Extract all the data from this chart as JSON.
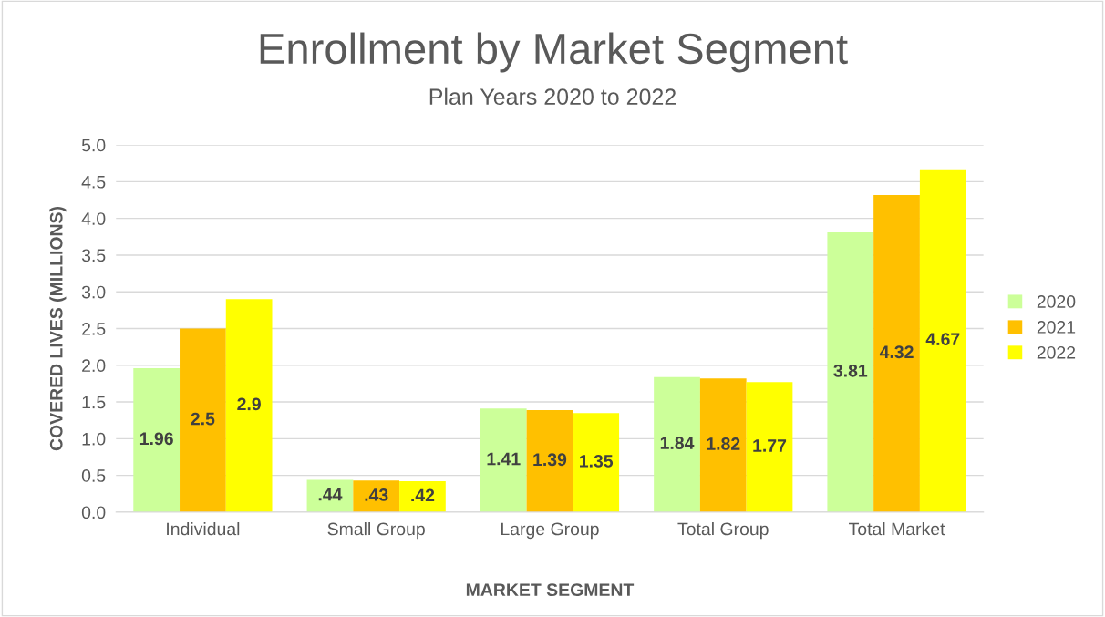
{
  "chart_data": {
    "type": "bar",
    "title": "Enrollment by Market Segment",
    "subtitle": "Plan Years 2020 to 2022",
    "xlabel": "MARKET SEGMENT",
    "ylabel": "COVERED LIVES (MILLIONS)",
    "categories": [
      "Individual",
      "Small Group",
      "Large Group",
      "Total Group",
      "Total Market"
    ],
    "series": [
      {
        "name": "2020",
        "color": "#ccff99",
        "values": [
          1.96,
          0.44,
          1.41,
          1.84,
          3.81
        ],
        "value_labels": [
          "1.96",
          ".44",
          "1.41",
          "1.84",
          "3.81"
        ]
      },
      {
        "name": "2021",
        "color": "#ffc000",
        "values": [
          2.5,
          0.43,
          1.39,
          1.82,
          4.32
        ],
        "value_labels": [
          "2.5",
          ".43",
          "1.39",
          "1.82",
          "4.32"
        ]
      },
      {
        "name": "2022",
        "color": "#ffff00",
        "values": [
          2.9,
          0.42,
          1.35,
          1.77,
          4.67
        ],
        "value_labels": [
          "2.9",
          ".42",
          "1.35",
          "1.77",
          "4.67"
        ]
      }
    ],
    "ylim": [
      0,
      5
    ],
    "yticks": [
      {
        "value": 0,
        "label": "0.0"
      },
      {
        "value": 0.5,
        "label": "0.5"
      },
      {
        "value": 1,
        "label": "1.0"
      },
      {
        "value": 1.5,
        "label": "1.5"
      },
      {
        "value": 2,
        "label": "2.0"
      },
      {
        "value": 2.5,
        "label": "2.5"
      },
      {
        "value": 3,
        "label": "3.0"
      },
      {
        "value": 3.5,
        "label": "3.5"
      },
      {
        "value": 4,
        "label": "4.0"
      },
      {
        "value": 4.5,
        "label": "4.5"
      },
      {
        "value": 5,
        "label": "5.0"
      }
    ],
    "grid": "y",
    "legend": "right"
  }
}
